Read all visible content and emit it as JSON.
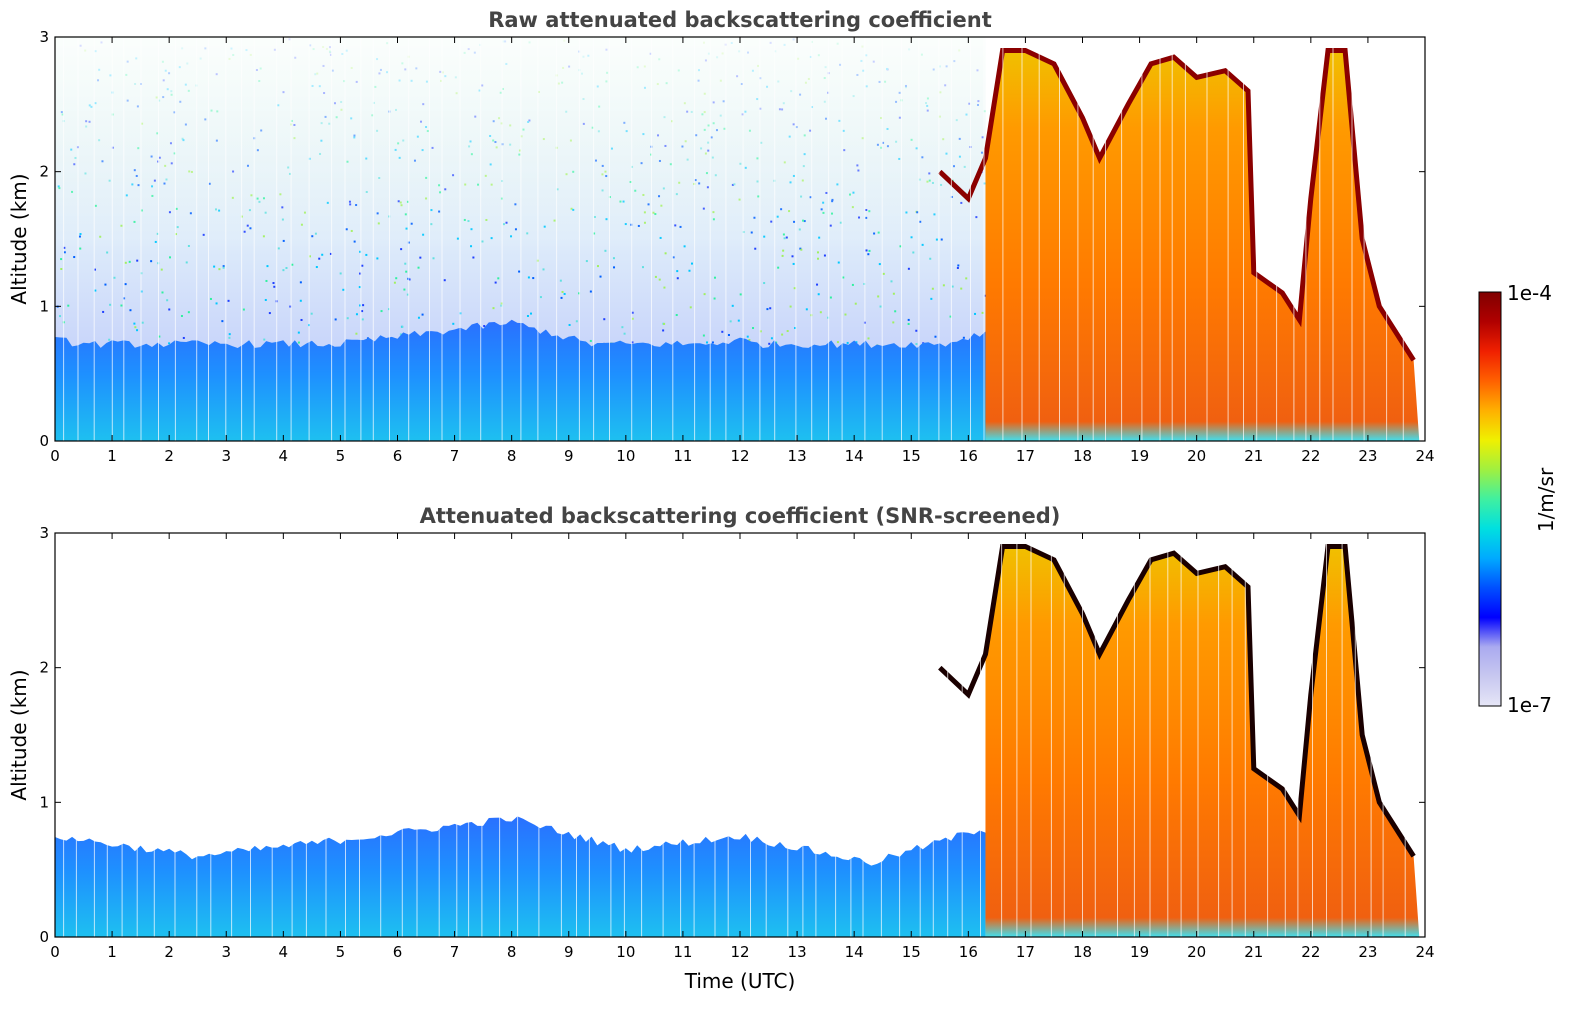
{
  "chart_data": [
    {
      "type": "heatmap",
      "title": "Raw attenuated backscattering coefficient",
      "xlabel": "",
      "ylabel": "Altitude (km)",
      "xlim": [
        0,
        24
      ],
      "ylim": [
        0,
        3
      ],
      "xticks": [
        "0",
        "1",
        "2",
        "3",
        "4",
        "5",
        "6",
        "7",
        "8",
        "9",
        "10",
        "11",
        "12",
        "13",
        "14",
        "15",
        "16",
        "17",
        "18",
        "19",
        "20",
        "21",
        "22",
        "23",
        "24"
      ],
      "yticks": [
        "0",
        "1",
        "2",
        "3"
      ],
      "grid": false,
      "colorscale": "jet",
      "cloud_top_km": [
        {
          "x": 15.5,
          "y": 2.0
        },
        {
          "x": 16.0,
          "y": 1.8
        },
        {
          "x": 16.3,
          "y": 2.1
        },
        {
          "x": 16.6,
          "y": 2.9
        },
        {
          "x": 17.0,
          "y": 2.9
        },
        {
          "x": 17.5,
          "y": 2.8
        },
        {
          "x": 18.0,
          "y": 2.4
        },
        {
          "x": 18.3,
          "y": 2.1
        },
        {
          "x": 18.8,
          "y": 2.5
        },
        {
          "x": 19.2,
          "y": 2.8
        },
        {
          "x": 19.6,
          "y": 2.85
        },
        {
          "x": 20.0,
          "y": 2.7
        },
        {
          "x": 20.5,
          "y": 2.75
        },
        {
          "x": 20.9,
          "y": 2.6
        },
        {
          "x": 21.0,
          "y": 1.25
        },
        {
          "x": 21.5,
          "y": 1.1
        },
        {
          "x": 21.8,
          "y": 0.9
        },
        {
          "x": 22.0,
          "y": 1.8
        },
        {
          "x": 22.3,
          "y": 2.9
        },
        {
          "x": 22.6,
          "y": 2.9
        },
        {
          "x": 22.9,
          "y": 1.5
        },
        {
          "x": 23.2,
          "y": 1.0
        },
        {
          "x": 23.5,
          "y": 0.8
        },
        {
          "x": 23.8,
          "y": 0.6
        }
      ],
      "boundary_layer_top_km": [
        {
          "x": 0,
          "y": 0.75
        },
        {
          "x": 2.5,
          "y": 0.6
        },
        {
          "x": 5,
          "y": 0.72
        },
        {
          "x": 8,
          "y": 0.88
        },
        {
          "x": 10,
          "y": 0.65
        },
        {
          "x": 12,
          "y": 0.75
        },
        {
          "x": 14.3,
          "y": 0.55
        },
        {
          "x": 16.2,
          "y": 0.8
        }
      ]
    },
    {
      "type": "heatmap",
      "title": "Attenuated backscattering coefficient (SNR-screened)",
      "xlabel": "Time (UTC)",
      "ylabel": "Altitude (km)",
      "xlim": [
        0,
        24
      ],
      "ylim": [
        0,
        3
      ],
      "xticks": [
        "0",
        "1",
        "2",
        "3",
        "4",
        "5",
        "6",
        "7",
        "8",
        "9",
        "10",
        "11",
        "12",
        "13",
        "14",
        "15",
        "16",
        "17",
        "18",
        "19",
        "20",
        "21",
        "22",
        "23",
        "24"
      ],
      "yticks": [
        "0",
        "1",
        "2",
        "3"
      ],
      "grid": false,
      "colorscale": "jet"
    }
  ],
  "colorbar": {
    "label": "1/m/sr",
    "max_label": "1e-4",
    "min_label": "1e-7",
    "colors": [
      "#e6e6f7",
      "#c8c8f0",
      "#aaaaf0",
      "#0000ff",
      "#0050ff",
      "#00aaff",
      "#00e0e0",
      "#40f0a0",
      "#a0f040",
      "#f0f000",
      "#ffb000",
      "#ff6000",
      "#f02000",
      "#b00000",
      "#800000"
    ]
  }
}
